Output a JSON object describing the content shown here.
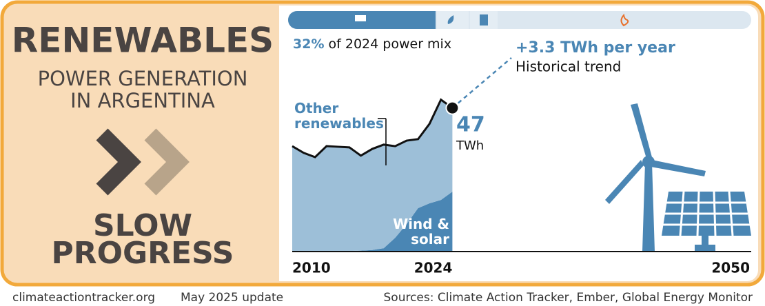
{
  "panel": {
    "title": "RENEWABLES",
    "subtitle_lines": [
      "POWER GENERATION",
      "IN ARGENTINA"
    ],
    "verdict_lines": [
      "SLOW",
      "PROGRESS"
    ]
  },
  "chart_data": {
    "type": "area",
    "x": [
      2010,
      2011,
      2012,
      2013,
      2014,
      2015,
      2016,
      2017,
      2018,
      2019,
      2020,
      2021,
      2022,
      2023,
      2024
    ],
    "series": [
      {
        "name": "Wind & solar",
        "color": "#4a86b4",
        "values": [
          0.1,
          0.1,
          0.1,
          0.1,
          0.1,
          0.2,
          0.3,
          0.5,
          1.1,
          4.5,
          9,
          14.2,
          15.8,
          16.9,
          19.6
        ]
      },
      {
        "name": "Other renewables",
        "color": "#9dbfd8",
        "values": [
          34.4,
          32.2,
          30.8,
          34.4,
          34.2,
          33.9,
          31.1,
          33.1,
          33.9,
          30,
          27.3,
          22.6,
          26,
          32.8,
          27.4
        ]
      }
    ],
    "xlim": [
      2010,
      2050
    ],
    "xticks": [
      2010,
      2024,
      2050
    ],
    "ylim": [
      0,
      60
    ],
    "end_value": 47,
    "end_unit": "TWh",
    "share_label": "32%",
    "share_text": "of 2024 power mix",
    "trend_label": "+3.3 TWh per year",
    "trend_text": "Historical trend"
  },
  "footer": {
    "site": "climateactiontracker.org",
    "update": "May 2025 update",
    "sources": "Sources: Climate Action Tracker, Ember, Global Energy Monitor"
  }
}
